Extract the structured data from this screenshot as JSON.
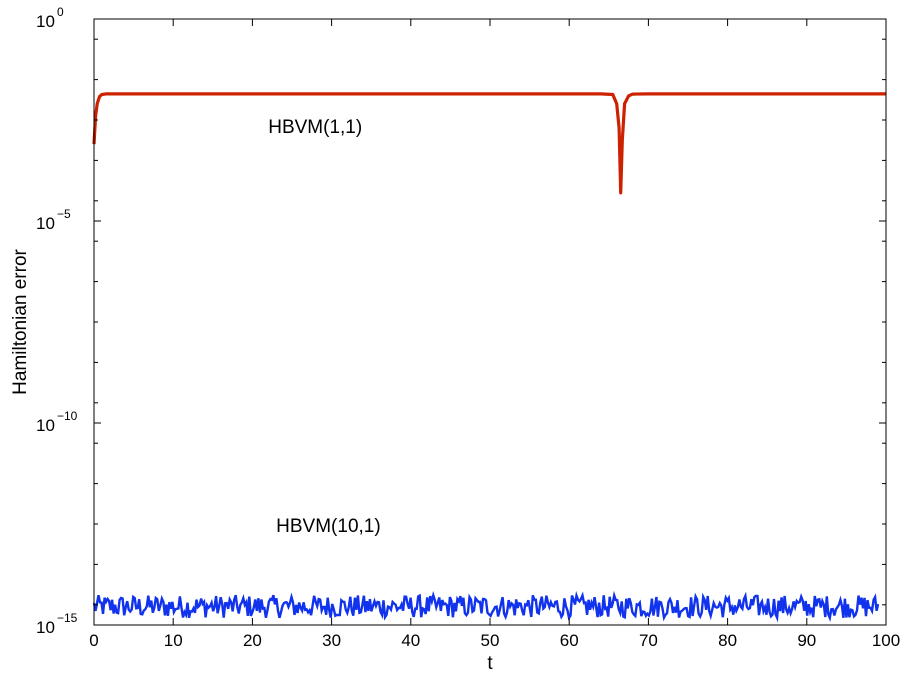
{
  "chart_data": {
    "type": "line",
    "title": "",
    "xlabel": "t",
    "ylabel": "Hamiltonian error",
    "xlim": [
      0,
      100
    ],
    "ylim": [
      1e-15,
      1
    ],
    "yscale": "log",
    "grid": false,
    "x_ticks": [
      "0",
      "10",
      "20",
      "30",
      "40",
      "50",
      "60",
      "70",
      "80",
      "90",
      "100"
    ],
    "y_ticks": [
      {
        "value": 1,
        "base": "10",
        "exp": "0"
      },
      {
        "value": 1e-05,
        "base": "10",
        "exp": "−5"
      },
      {
        "value": 1e-10,
        "base": "10",
        "exp": "−10"
      },
      {
        "value": 1e-15,
        "base": "10",
        "exp": "−15"
      }
    ],
    "annotations": [
      {
        "text": "HBVM(1,1)",
        "x": 22,
        "y": 0.0015
      },
      {
        "text": "HBVM(10,1)",
        "x": 23,
        "y": 2e-13
      }
    ],
    "series": [
      {
        "name": "HBVM(1,1)",
        "color": "#cc2200",
        "x": [
          0,
          0.1,
          0.2,
          0.4,
          0.7,
          1.0,
          1.5,
          2,
          10,
          20,
          30,
          40,
          50,
          60,
          64,
          65.5,
          66,
          66.3,
          66.5,
          66.7,
          67,
          67.5,
          68,
          70,
          80,
          90,
          100
        ],
        "y": [
          0.0008,
          0.0018,
          0.004,
          0.008,
          0.012,
          0.0135,
          0.014,
          0.014,
          0.014,
          0.014,
          0.014,
          0.014,
          0.014,
          0.014,
          0.014,
          0.0135,
          0.008,
          0.002,
          5e-05,
          0.001,
          0.008,
          0.0125,
          0.0138,
          0.014,
          0.014,
          0.014,
          0.014
        ]
      },
      {
        "name": "HBVM(10,1)",
        "color": "#1133ee",
        "noise": {
          "x_start": 0,
          "x_end": 99,
          "y_min": 1.5e-15,
          "y_max": 5.5e-15
        }
      }
    ]
  }
}
